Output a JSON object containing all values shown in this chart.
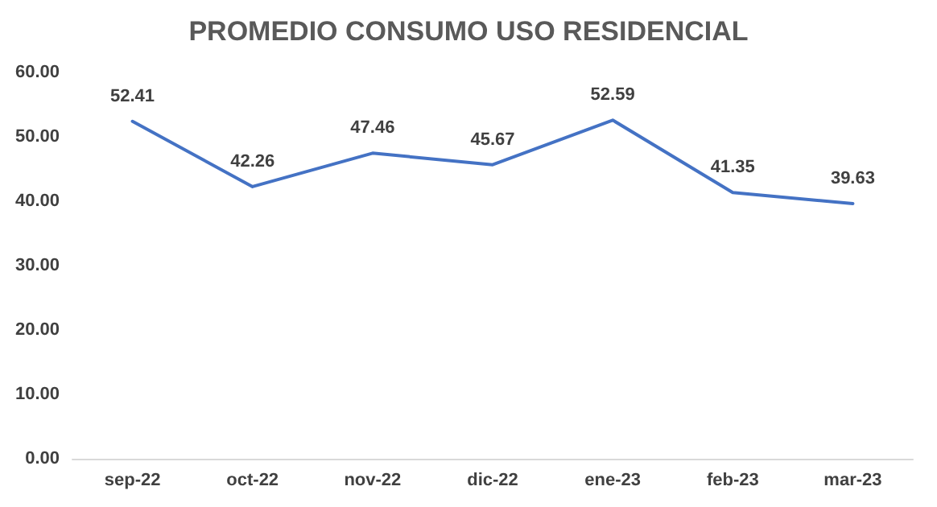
{
  "chart_data": {
    "type": "line",
    "title": "PROMEDIO CONSUMO USO RESIDENCIAL",
    "categories": [
      "sep-22",
      "oct-22",
      "nov-22",
      "dic-22",
      "ene-23",
      "feb-23",
      "mar-23"
    ],
    "series": [
      {
        "color": "#4472c4",
        "values": [
          52.41,
          42.26,
          47.46,
          45.67,
          52.59,
          41.35,
          39.63
        ]
      }
    ],
    "ylim": [
      0,
      60
    ],
    "yticks": [
      {
        "value": 0,
        "label": "0.00"
      },
      {
        "value": 10,
        "label": "10.00"
      },
      {
        "value": 20,
        "label": "20.00"
      },
      {
        "value": 30,
        "label": "30.00"
      },
      {
        "value": 40,
        "label": "40.00"
      },
      {
        "value": 50,
        "label": "50.00"
      },
      {
        "value": 60,
        "label": "60.00"
      }
    ],
    "data_labels": true,
    "marker": "none",
    "line_style": "solid"
  }
}
